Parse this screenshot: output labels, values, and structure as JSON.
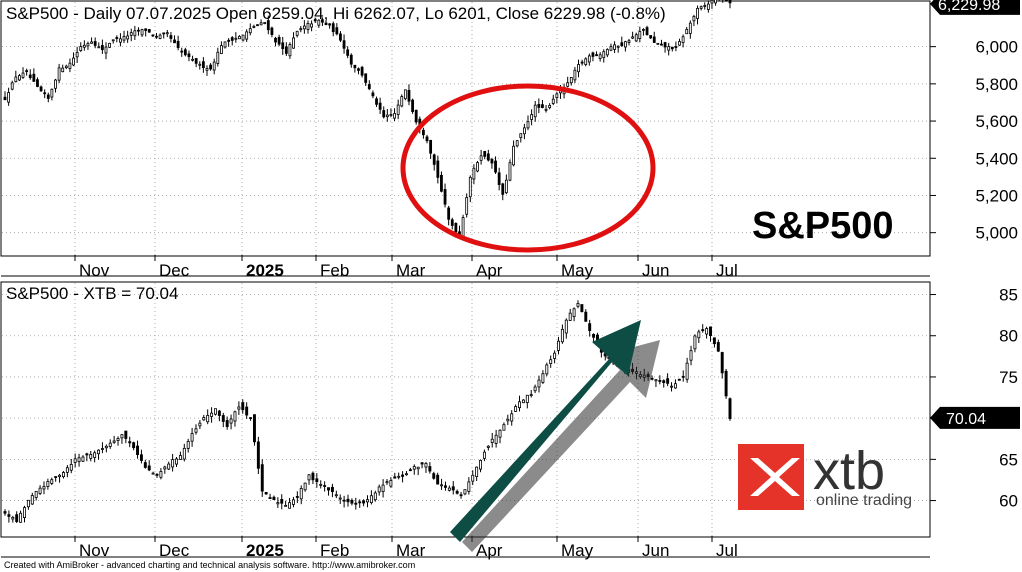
{
  "chart_data": [
    {
      "type": "candlestick",
      "title": "S&P500 - Daily 07.07.2025 Open 6259.04, Hi 6262.07, Lo 6201, Close 6229.98 (-0.8%)",
      "watermark": "S&P500",
      "last_value_label": "6,229.98",
      "last_value": 6229.98,
      "y_ticks": [
        5000,
        5200,
        5400,
        5600,
        5800,
        6000
      ],
      "y_tick_labels": [
        "5,000",
        "5,200",
        "5,400",
        "5,600",
        "5,800",
        "6,000"
      ],
      "ylim": [
        4880,
        6240
      ],
      "x_tick_labels": [
        "Nov",
        "Dec",
        "2025",
        "Feb",
        "Mar",
        "Apr",
        "May",
        "Jun",
        "Jul"
      ],
      "grid": true,
      "annotation": "red-ellipse-around-april-2025-drawdown",
      "anchors_close": [
        5720,
        5840,
        5860,
        5780,
        5720,
        5880,
        5910,
        6000,
        6030,
        5980,
        6040,
        6050,
        6080,
        6090,
        6050,
        6070,
        5990,
        5940,
        5900,
        5880,
        6010,
        6040,
        6060,
        6110,
        6130,
        6030,
        5970,
        6080,
        6120,
        6140,
        6110,
        6040,
        5910,
        5850,
        5730,
        5620,
        5640,
        5770,
        5600,
        5500,
        5300,
        5070,
        4980,
        5300,
        5420,
        5380,
        5200,
        5460,
        5560,
        5680,
        5660,
        5750,
        5800,
        5900,
        5950,
        5960,
        6000,
        6010,
        6050,
        6090,
        6020,
        6000,
        5990,
        6090,
        6200,
        6230,
        6279,
        6230
      ],
      "points_per_anchor": 3
    },
    {
      "type": "candlestick",
      "title": "S&P500 - XTB = 70.04",
      "last_value_label": "70.04",
      "last_value": 70.04,
      "y_ticks": [
        60,
        65,
        70,
        75,
        80,
        85
      ],
      "y_tick_labels": [
        "60",
        "65",
        "70",
        "75",
        "80",
        "85"
      ],
      "ylim": [
        55.7,
        86.4
      ],
      "x_tick_labels": [
        "Nov",
        "Dec",
        "2025",
        "Feb",
        "Mar",
        "Apr",
        "May",
        "Jun",
        "Jul"
      ],
      "grid": true,
      "annotation": "dark-green-arrow-pointing-up-right",
      "anchors_close": [
        58.5,
        57.5,
        60,
        61.5,
        62.5,
        63.5,
        65,
        65.5,
        66,
        67,
        68,
        66.5,
        64,
        63,
        64.5,
        65.5,
        68,
        70,
        71,
        69,
        71.5,
        70,
        61,
        60,
        59.5,
        60.5,
        63,
        62,
        61,
        60,
        59.5,
        60,
        61.5,
        62.5,
        63,
        64,
        64.5,
        62,
        61.5,
        60.5,
        63,
        66,
        68,
        70,
        72,
        73,
        75.5,
        78,
        82,
        84,
        80.5,
        78,
        77,
        76,
        75.5,
        75,
        74.5,
        74,
        75,
        80,
        81,
        78,
        70.04
      ],
      "points_per_anchor": 3
    }
  ],
  "footer": "Created with AmiBroker - advanced charting and technical analysis software. http://www.amibroker.com",
  "logo": {
    "brand": "xtb",
    "tagline": "online trading",
    "red": "#e5332a"
  },
  "colors": {
    "ellipse": "#e01010",
    "arrow": "#0d4d44",
    "grid": "#9a9a9a",
    "candle": "#000000",
    "tag_bg": "#000000",
    "tag_text": "#ffffff"
  }
}
